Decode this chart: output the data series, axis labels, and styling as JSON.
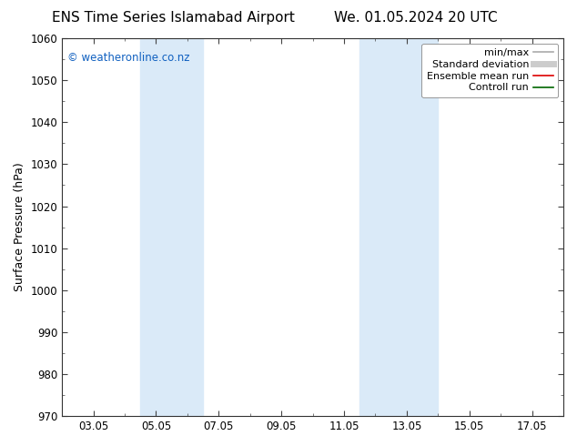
{
  "title_left": "ENS Time Series Islamabad Airport",
  "title_right": "We. 01.05.2024 20 UTC",
  "ylabel": "Surface Pressure (hPa)",
  "ylim": [
    970,
    1060
  ],
  "yticks": [
    970,
    980,
    990,
    1000,
    1010,
    1020,
    1030,
    1040,
    1050,
    1060
  ],
  "xtick_labels": [
    "03.05",
    "05.05",
    "07.05",
    "09.05",
    "11.05",
    "13.05",
    "15.05",
    "17.05"
  ],
  "xtick_positions": [
    2,
    4,
    6,
    8,
    10,
    12,
    14,
    16
  ],
  "xlim": [
    1,
    17
  ],
  "shaded_bands": [
    {
      "x_start": 3.5,
      "x_end": 5.5
    },
    {
      "x_start": 10.5,
      "x_end": 13.0
    }
  ],
  "shade_color": "#daeaf8",
  "background_color": "#ffffff",
  "plot_bg_color": "#ffffff",
  "legend_items": [
    {
      "label": "min/max",
      "color": "#aaaaaa",
      "lw": 1.2,
      "style": "solid"
    },
    {
      "label": "Standard deviation",
      "color": "#cccccc",
      "lw": 5,
      "style": "solid"
    },
    {
      "label": "Ensemble mean run",
      "color": "#dd0000",
      "lw": 1.2,
      "style": "solid"
    },
    {
      "label": "Controll run",
      "color": "#006600",
      "lw": 1.2,
      "style": "solid"
    }
  ],
  "watermark_text": "© weatheronline.co.nz",
  "watermark_color": "#1060c0",
  "watermark_fontsize": 8.5,
  "title_fontsize": 11,
  "axis_label_fontsize": 9,
  "tick_fontsize": 8.5,
  "legend_fontsize": 8
}
